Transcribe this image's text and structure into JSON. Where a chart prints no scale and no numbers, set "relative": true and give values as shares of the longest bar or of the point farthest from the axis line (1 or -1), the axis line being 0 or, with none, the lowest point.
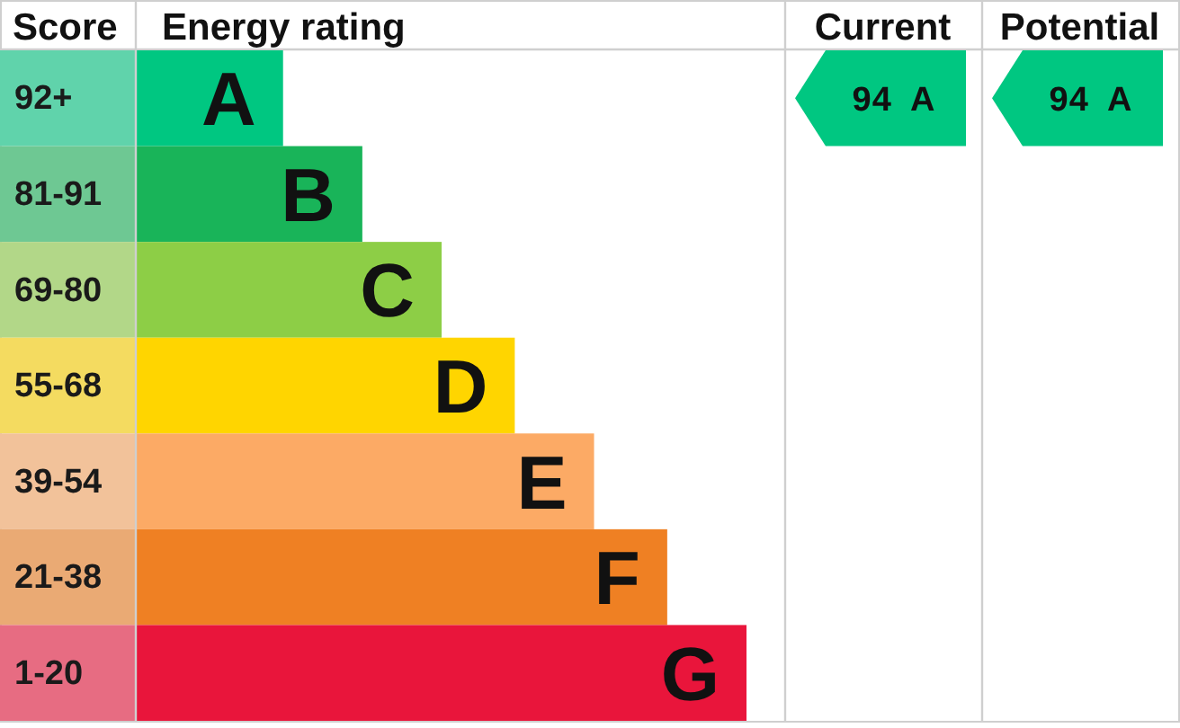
{
  "chart_data": {
    "type": "bar",
    "orientation": "horizontal",
    "relative": true,
    "xlabel": "Energy rating",
    "ylabel": "Score",
    "categories": [
      "92+",
      "81-91",
      "69-80",
      "55-68",
      "39-54",
      "21-38",
      "1-20"
    ],
    "values": [
      0.24,
      0.37,
      0.5,
      0.62,
      0.75,
      0.87,
      1
    ],
    "colors": [
      "#00c781",
      "#19b459",
      "#8dce46",
      "#ffd500",
      "#fcaa65",
      "#ef8023",
      "#e9153b"
    ],
    "annotations": [
      {
        "text": "A",
        "x": 0.24,
        "y": "92+"
      },
      {
        "text": "B",
        "x": 0.37,
        "y": "81-91"
      },
      {
        "text": "C",
        "x": 0.5,
        "y": "69-80"
      },
      {
        "text": "D",
        "x": 0.62,
        "y": "55-68"
      },
      {
        "text": "E",
        "x": 0.75,
        "y": "39-54"
      },
      {
        "text": "F",
        "x": 0.87,
        "y": "21-38"
      },
      {
        "text": "G",
        "x": 1,
        "y": "1-20"
      },
      "Current",
      "94 A",
      "Potential",
      "94 A"
    ]
  }
}
